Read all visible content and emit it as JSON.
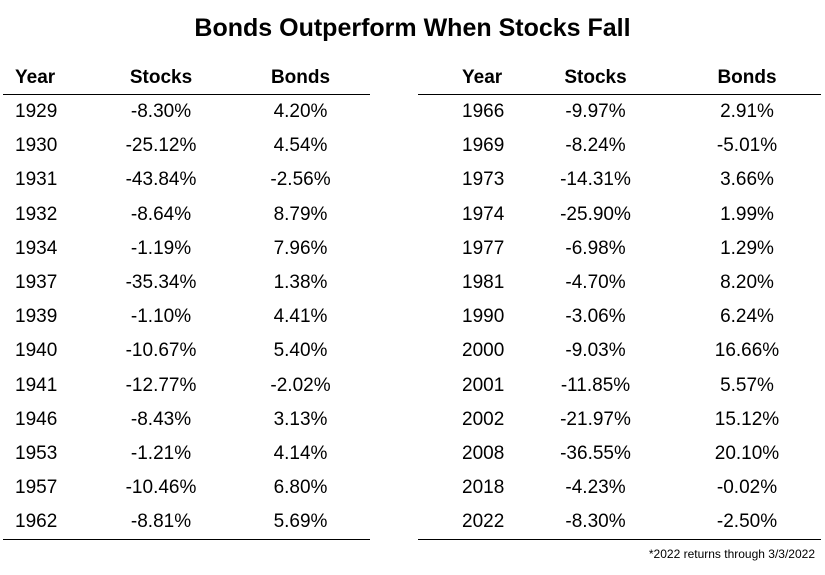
{
  "chart_data": {
    "type": "table",
    "title": "Bonds Outperform When Stocks Fall",
    "columns": [
      "Year",
      "Stocks",
      "Bonds"
    ],
    "rows_left": [
      [
        "1929",
        "-8.30%",
        "4.20%"
      ],
      [
        "1930",
        "-25.12%",
        "4.54%"
      ],
      [
        "1931",
        "-43.84%",
        "-2.56%"
      ],
      [
        "1932",
        "-8.64%",
        "8.79%"
      ],
      [
        "1934",
        "-1.19%",
        "7.96%"
      ],
      [
        "1937",
        "-35.34%",
        "1.38%"
      ],
      [
        "1939",
        "-1.10%",
        "4.41%"
      ],
      [
        "1940",
        "-10.67%",
        "5.40%"
      ],
      [
        "1941",
        "-12.77%",
        "-2.02%"
      ],
      [
        "1946",
        "-8.43%",
        "3.13%"
      ],
      [
        "1953",
        "-1.21%",
        "4.14%"
      ],
      [
        "1957",
        "-10.46%",
        "6.80%"
      ],
      [
        "1962",
        "-8.81%",
        "5.69%"
      ]
    ],
    "rows_right": [
      [
        "1966",
        "-9.97%",
        "2.91%"
      ],
      [
        "1969",
        "-8.24%",
        "-5.01%"
      ],
      [
        "1973",
        "-14.31%",
        "3.66%"
      ],
      [
        "1974",
        "-25.90%",
        "1.99%"
      ],
      [
        "1977",
        "-6.98%",
        "1.29%"
      ],
      [
        "1981",
        "-4.70%",
        "8.20%"
      ],
      [
        "1990",
        "-3.06%",
        "6.24%"
      ],
      [
        "2000",
        "-9.03%",
        "16.66%"
      ],
      [
        "2001",
        "-11.85%",
        "5.57%"
      ],
      [
        "2002",
        "-21.97%",
        "15.12%"
      ],
      [
        "2008",
        "-36.55%",
        "20.10%"
      ],
      [
        "2018",
        "-4.23%",
        "-0.02%"
      ],
      [
        "2022",
        "-8.30%",
        "-2.50%"
      ]
    ],
    "footnote": "*2022 returns through 3/3/2022"
  }
}
